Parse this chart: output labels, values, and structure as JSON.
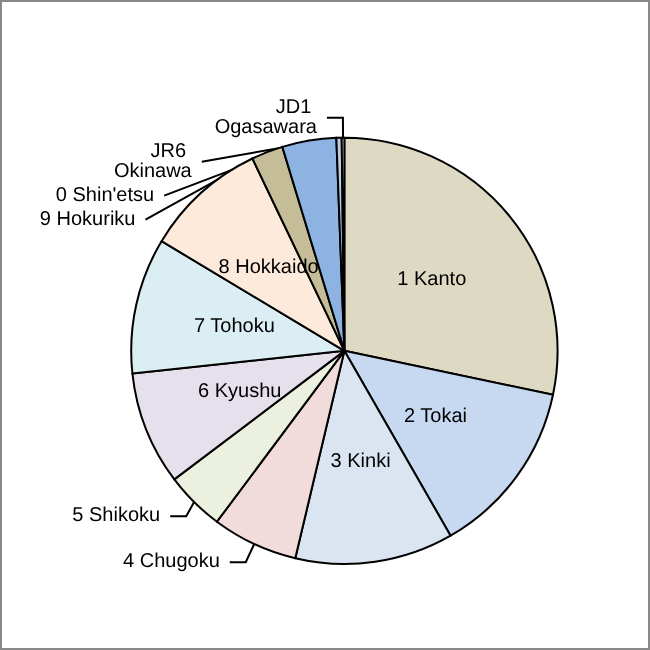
{
  "chart_data": {
    "type": "pie",
    "categories": [
      "1 Kanto",
      "2 Tokai",
      "3 Kinki",
      "4 Chugoku",
      "5 Shikoku",
      "6 Kyushu",
      "7 Tohoku",
      "8 Hokkaido",
      "9 Hokuriku",
      "0 Shin'etsu",
      "JR6 Okinawa",
      "JD1 Ogasawara"
    ],
    "values": [
      28.3,
      13.4,
      12,
      6.5,
      4.5,
      8.6,
      10.3,
      9.3,
      2.4,
      4.1,
      0.4,
      0.2
    ],
    "colors": [
      "#ddd9c3",
      "#c6d9f1",
      "#dbe5f1",
      "#f2dcdb",
      "#ebf1de",
      "#e5e0ec",
      "#dbeef4",
      "#fdeada",
      "#c4bd97",
      "#8db3e2",
      "#b9cde5",
      "#eeece1"
    ],
    "legend": false
  }
}
